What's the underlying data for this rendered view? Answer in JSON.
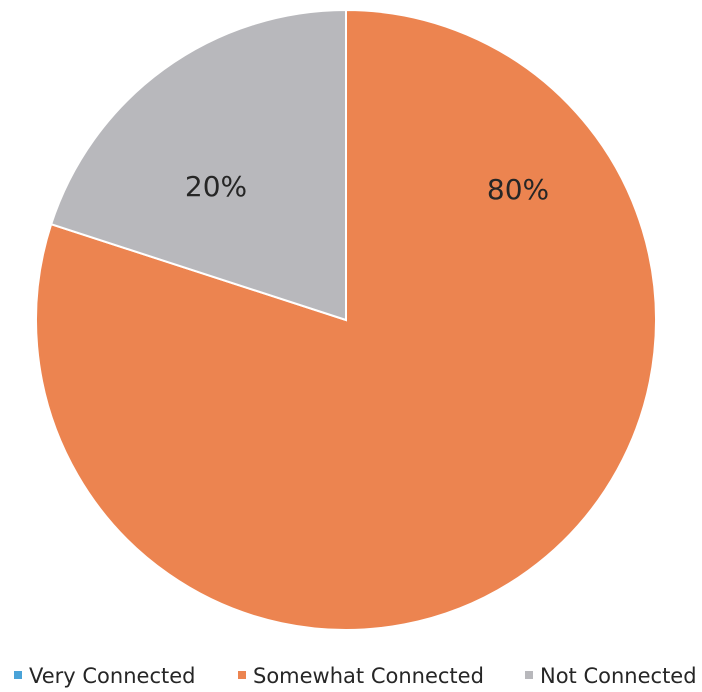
{
  "chart_data": {
    "type": "pie",
    "title": "",
    "categories": [
      "Very Connected",
      "Somewhat Connected",
      "Not Connected"
    ],
    "values": [
      0,
      80,
      20
    ],
    "data_labels": [
      "",
      "80%",
      "20%"
    ],
    "colors": [
      "#4aa3d8",
      "#ec8450",
      "#b8b8bc"
    ],
    "legend_position": "bottom",
    "start_angle_deg": 0,
    "direction": "clockwise"
  }
}
